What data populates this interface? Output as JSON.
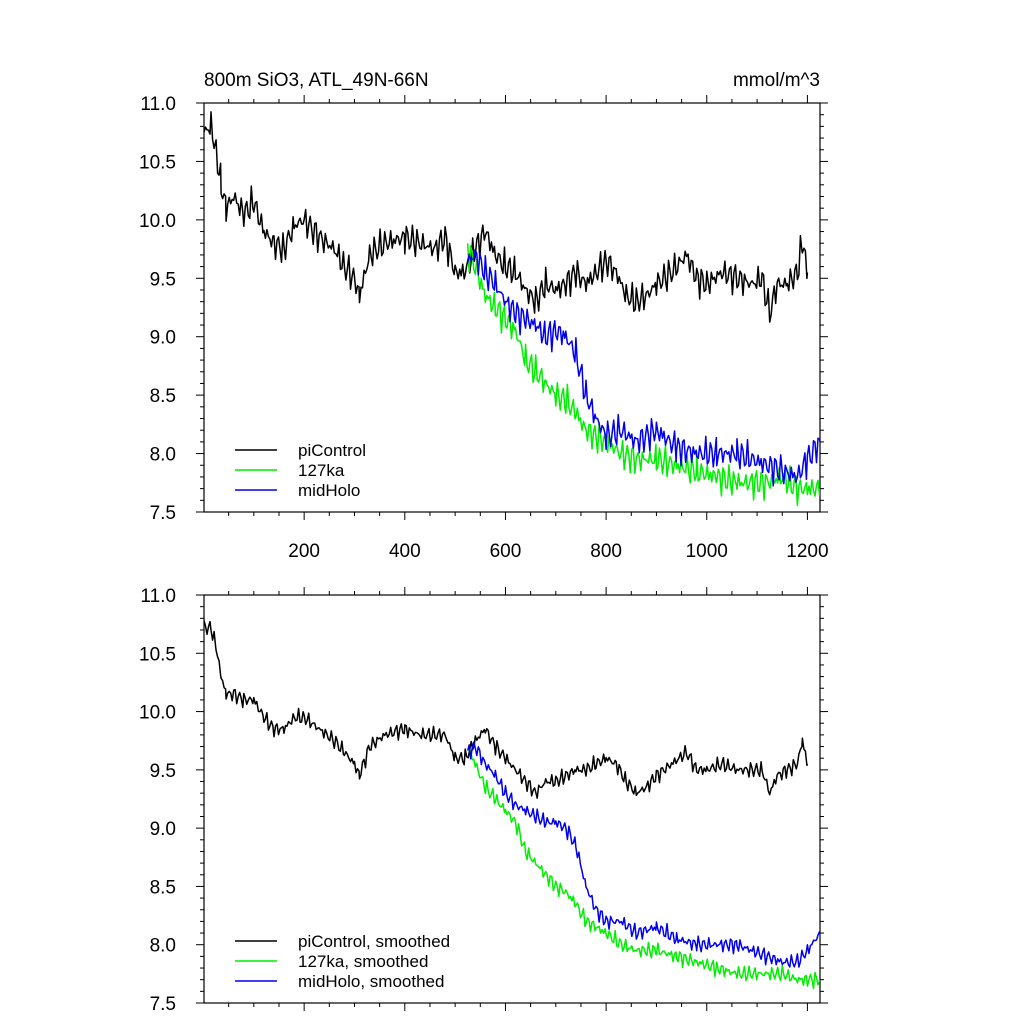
{
  "figure": {
    "title_left": "800m SiO3, ATL_49N-66N",
    "title_right": "mmol/m^3"
  },
  "colors": {
    "piControl": "#000000",
    "127ka": "#00ee00",
    "midHolo": "#0000ee",
    "axis": "#000000"
  },
  "chart_data": [
    {
      "type": "line",
      "title": "800m SiO3, ATL_49N-66N",
      "units": "mmol/m^3",
      "xlim": [
        1,
        1225
      ],
      "ylim": [
        7.5,
        11.0
      ],
      "xticks": [
        200,
        400,
        600,
        800,
        1000,
        1200
      ],
      "xtick_labels": [
        "200",
        "400",
        "600",
        "800",
        "1000",
        "1200"
      ],
      "yticks": [
        7.5,
        8.0,
        8.5,
        9.0,
        9.5,
        10.0,
        10.5,
        11.0
      ],
      "ytick_labels": [
        "7.5",
        "8.0",
        "8.5",
        "9.0",
        "9.5",
        "10.0",
        "10.5",
        "11.0"
      ],
      "legend": {
        "position": "bottom-left",
        "entries": [
          "piControl",
          "127ka",
          "midHolo"
        ]
      },
      "series": [
        {
          "name": "piControl",
          "color": "#000000",
          "x": [
            1,
            15,
            25,
            35,
            45,
            60,
            80,
            100,
            120,
            140,
            160,
            180,
            200,
            230,
            260,
            280,
            300,
            310,
            330,
            360,
            400,
            430,
            460,
            480,
            500,
            520,
            540,
            560,
            580,
            600,
            620,
            640,
            660,
            680,
            700,
            720,
            740,
            760,
            780,
            800,
            820,
            840,
            860,
            880,
            900,
            930,
            960,
            980,
            1000,
            1030,
            1060,
            1090,
            1110,
            1125,
            1140,
            1160,
            1180,
            1190,
            1200
          ],
          "values": [
            10.75,
            10.8,
            10.6,
            10.3,
            10.1,
            10.2,
            10.05,
            10.15,
            9.9,
            9.8,
            9.75,
            9.95,
            10.0,
            9.85,
            9.75,
            9.6,
            9.5,
            9.35,
            9.7,
            9.8,
            9.85,
            9.8,
            9.75,
            9.85,
            9.55,
            9.55,
            9.75,
            9.9,
            9.7,
            9.6,
            9.55,
            9.4,
            9.3,
            9.45,
            9.4,
            9.45,
            9.55,
            9.45,
            9.55,
            9.65,
            9.55,
            9.35,
            9.3,
            9.35,
            9.45,
            9.55,
            9.7,
            9.5,
            9.45,
            9.55,
            9.5,
            9.45,
            9.5,
            9.2,
            9.45,
            9.45,
            9.55,
            9.8,
            9.55
          ]
        },
        {
          "name": "127ka",
          "color": "#00ee00",
          "x": [
            525,
            540,
            560,
            580,
            600,
            620,
            640,
            660,
            680,
            700,
            720,
            740,
            760,
            780,
            800,
            830,
            860,
            900,
            940,
            980,
            1020,
            1060,
            1090,
            1120,
            1150,
            1180,
            1200,
            1225
          ],
          "values": [
            9.75,
            9.6,
            9.35,
            9.25,
            9.15,
            9.05,
            8.8,
            8.7,
            8.6,
            8.5,
            8.45,
            8.35,
            8.2,
            8.15,
            8.1,
            8.0,
            7.95,
            7.95,
            7.9,
            7.85,
            7.8,
            7.75,
            7.75,
            7.75,
            7.8,
            7.7,
            7.7,
            7.7
          ]
        },
        {
          "name": "midHolo",
          "color": "#0000ee",
          "x": [
            525,
            540,
            560,
            580,
            600,
            620,
            640,
            660,
            680,
            700,
            720,
            740,
            760,
            780,
            800,
            830,
            860,
            900,
            940,
            980,
            1020,
            1060,
            1090,
            1120,
            1150,
            1180,
            1200,
            1225
          ],
          "values": [
            9.65,
            9.7,
            9.55,
            9.45,
            9.3,
            9.2,
            9.15,
            9.1,
            9.0,
            9.05,
            9.0,
            8.85,
            8.5,
            8.3,
            8.15,
            8.2,
            8.1,
            8.2,
            8.05,
            8.0,
            8.0,
            8.0,
            7.95,
            7.9,
            7.85,
            7.8,
            7.95,
            8.1
          ]
        }
      ]
    },
    {
      "type": "line",
      "title": "",
      "xlim": [
        1,
        1225
      ],
      "ylim": [
        7.5,
        11.0
      ],
      "xticks": [
        200,
        400,
        600,
        800,
        1000,
        1200
      ],
      "yticks": [
        7.5,
        8.0,
        8.5,
        9.0,
        9.5,
        10.0,
        10.5,
        11.0
      ],
      "ytick_labels": [
        "7.5",
        "8.0",
        "8.5",
        "9.0",
        "9.5",
        "10.0",
        "10.5",
        "11.0"
      ],
      "legend": {
        "position": "bottom-left",
        "entries": [
          "piControl, smoothed",
          "127ka, smoothed",
          "midHolo, smoothed"
        ]
      },
      "series": [
        {
          "name": "piControl, smoothed",
          "color": "#000000",
          "x": [
            1,
            15,
            25,
            35,
            45,
            60,
            80,
            100,
            120,
            140,
            160,
            180,
            200,
            230,
            260,
            280,
            300,
            310,
            330,
            360,
            400,
            430,
            460,
            480,
            500,
            520,
            540,
            560,
            580,
            600,
            620,
            640,
            660,
            680,
            700,
            720,
            740,
            760,
            780,
            800,
            820,
            840,
            860,
            880,
            900,
            930,
            960,
            980,
            1000,
            1030,
            1060,
            1090,
            1110,
            1125,
            1140,
            1160,
            1180,
            1190,
            1200
          ],
          "values": [
            10.72,
            10.72,
            10.55,
            10.3,
            10.15,
            10.15,
            10.1,
            10.1,
            9.95,
            9.85,
            9.85,
            9.95,
            9.95,
            9.85,
            9.75,
            9.65,
            9.55,
            9.45,
            9.7,
            9.8,
            9.85,
            9.8,
            9.8,
            9.8,
            9.6,
            9.6,
            9.75,
            9.85,
            9.7,
            9.6,
            9.5,
            9.4,
            9.3,
            9.4,
            9.4,
            9.45,
            9.5,
            9.5,
            9.55,
            9.6,
            9.55,
            9.4,
            9.3,
            9.35,
            9.45,
            9.55,
            9.65,
            9.5,
            9.5,
            9.55,
            9.5,
            9.5,
            9.5,
            9.3,
            9.45,
            9.5,
            9.55,
            9.75,
            9.55
          ]
        },
        {
          "name": "127ka, smoothed",
          "color": "#00ee00",
          "x": [
            525,
            540,
            560,
            580,
            600,
            620,
            640,
            660,
            680,
            700,
            720,
            740,
            760,
            780,
            800,
            830,
            860,
            900,
            940,
            980,
            1020,
            1060,
            1090,
            1120,
            1150,
            1180,
            1200,
            1225
          ],
          "values": [
            9.7,
            9.55,
            9.35,
            9.25,
            9.15,
            9.05,
            8.8,
            8.7,
            8.6,
            8.5,
            8.45,
            8.35,
            8.2,
            8.15,
            8.1,
            8.0,
            7.95,
            7.95,
            7.9,
            7.85,
            7.8,
            7.75,
            7.75,
            7.75,
            7.75,
            7.7,
            7.7,
            7.7
          ]
        },
        {
          "name": "midHolo, smoothed",
          "color": "#0000ee",
          "x": [
            525,
            540,
            560,
            580,
            600,
            620,
            640,
            660,
            680,
            700,
            720,
            740,
            760,
            780,
            800,
            830,
            860,
            900,
            940,
            980,
            1020,
            1060,
            1090,
            1120,
            1150,
            1180,
            1200,
            1225
          ],
          "values": [
            9.65,
            9.7,
            9.55,
            9.45,
            9.3,
            9.2,
            9.15,
            9.1,
            9.05,
            9.05,
            9.0,
            8.85,
            8.5,
            8.3,
            8.2,
            8.2,
            8.1,
            8.15,
            8.05,
            8.0,
            8.0,
            8.0,
            7.95,
            7.9,
            7.85,
            7.85,
            7.95,
            8.1
          ]
        }
      ]
    }
  ]
}
